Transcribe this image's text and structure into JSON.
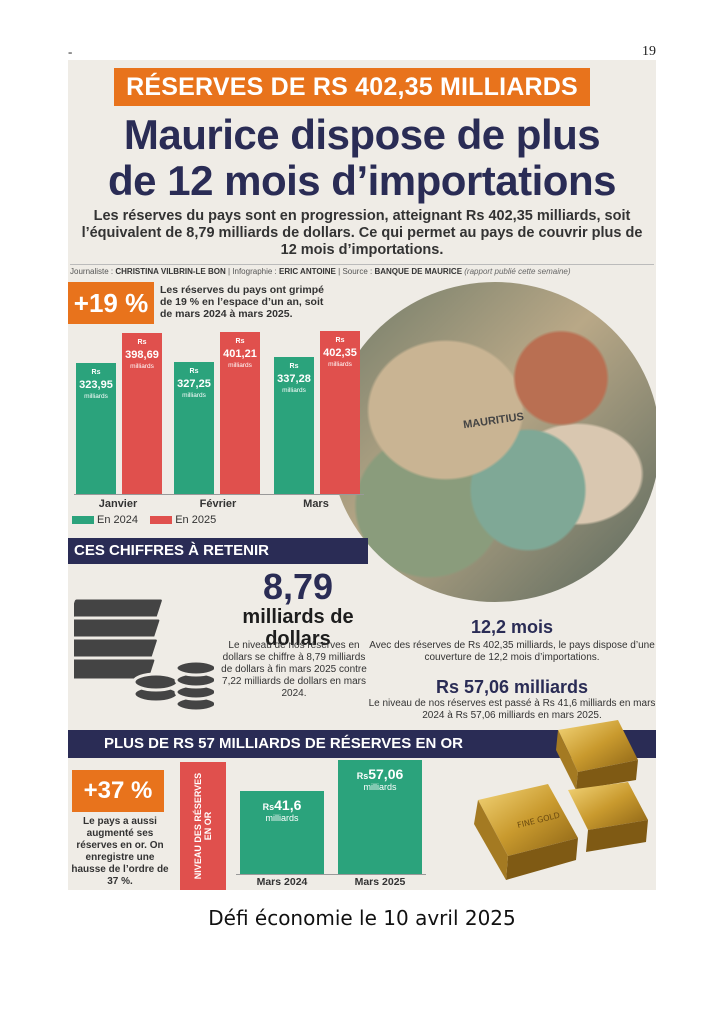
{
  "page": {
    "dash": "-",
    "number": "19"
  },
  "article": {
    "banner": "RÉSERVES DE RS 402,35 MILLIARDS",
    "headline_line1": "Maurice dispose de plus",
    "headline_line2": "de 12 mois d’importations",
    "lede": "Les réserves du pays sont en progression, atteignant Rs 402,35 milliards, soit l’équivalent de 8,79 milliards de dollars. Ce qui permet au pays de couvrir plus de 12 mois d’importations.",
    "credits": {
      "journalist_label": "Journaliste :",
      "journalist": "CHRISTINA VILBRIN-LE BON",
      "infographic_label": "Infographie :",
      "infographic": "ERIC ANTOINE",
      "source_label": "Source :",
      "source": "BANQUE DE MAURICE",
      "source_note": "(rapport publié cette semaine)"
    }
  },
  "growth_19": {
    "badge": "+19 %",
    "note": "Les réserves du pays ont grimpé de 19 % en l’espace d’un an, soit de mars 2024 à mars 2025."
  },
  "bills_text": "MAURITIUS",
  "reserves_chart": {
    "type": "bar",
    "categories": [
      "Janvier",
      "Février",
      "Mars"
    ],
    "series": [
      {
        "name": "En 2024",
        "color": "#2ba37c",
        "values": [
          323.95,
          327.25,
          337.28
        ],
        "labels": [
          "323,95",
          "327,25",
          "337,28"
        ]
      },
      {
        "name": "En 2025",
        "color": "#e0504d",
        "values": [
          398.69,
          401.21,
          402.35
        ],
        "labels": [
          "398,69",
          "401,21",
          "402,35"
        ]
      }
    ],
    "currency_prefix": "Rs",
    "unit_label": "milliards",
    "ylim": [
      0,
      420
    ]
  },
  "key_figures": {
    "title": "CES CHIFFRES À RETENIR",
    "dollars": {
      "value": "8,79",
      "unit": "milliards de dollars",
      "text": "Le niveau de nos réserves en dollars se chiffre à 8,79 milliards de dollars à fin mars 2025 contre 7,22 milliards de dollars en mars 2024."
    },
    "months": {
      "value": "12,2 mois",
      "text": "Avec des réserves de Rs 402,35 milliards, le pays dispose d’une couverture de 12,2 mois d’importations."
    },
    "gold_amount": {
      "value": "Rs 57,06 milliards",
      "text": "Le niveau de nos réserves est passé à Rs 41,6 milliards en mars 2024 à Rs 57,06 milliards en mars 2025."
    }
  },
  "gold": {
    "title": "PLUS DE RS 57 MILLIARDS DE RÉSERVES EN OR",
    "badge": "+37 %",
    "note": "Le pays a aussi augmenté ses réserves en or. On enregistre une hausse de l’ordre de 37 %.",
    "axis_label": "NIVEAU DES RÉSERVES EN OR",
    "bar_text": "FINE GOLD"
  },
  "chart_data": [
    {
      "type": "bar",
      "title": "",
      "categories": [
        "Janvier",
        "Février",
        "Mars"
      ],
      "series": [
        {
          "name": "En 2024",
          "values": [
            323.95,
            327.25,
            337.28
          ]
        },
        {
          "name": "En 2025",
          "values": [
            398.69,
            401.21,
            402.35
          ]
        }
      ],
      "ylabel": "",
      "ylim": [
        0,
        420
      ],
      "legend": "bottom-left"
    },
    {
      "type": "bar",
      "title": "",
      "categories": [
        "Mars 2024",
        "Mars 2025"
      ],
      "values": [
        41.6,
        57.06
      ],
      "labels": [
        "41,6",
        "57,06"
      ],
      "ylabel": "NIVEAU DES RÉSERVES EN OR",
      "ylim": [
        0,
        60
      ]
    }
  ],
  "caption": "Défi économie le 10 avril 2025"
}
